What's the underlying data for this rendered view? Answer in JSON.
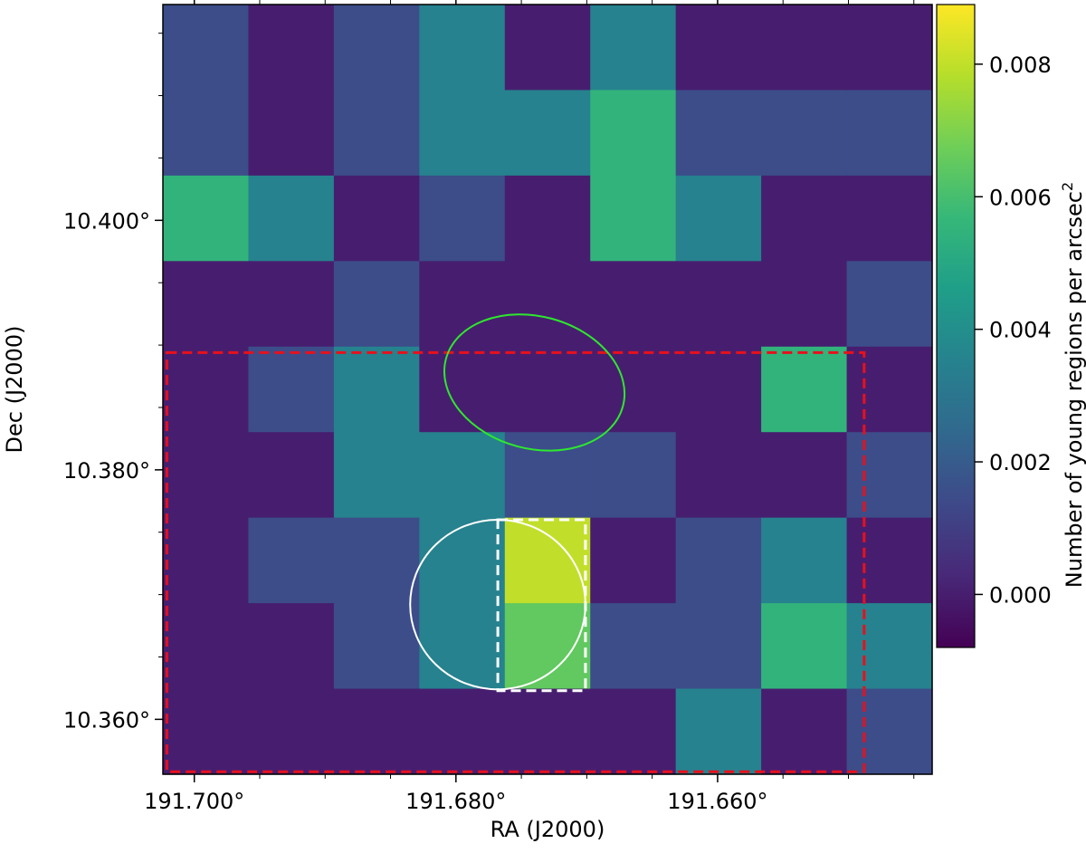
{
  "chart_data": {
    "type": "heatmap",
    "title": "",
    "xlabel": "RA (J2000)",
    "ylabel": "Dec (J2000)",
    "colorbar_label": "Number of young regions per arcsec",
    "colorbar_label_sup": "2",
    "colormap": "viridis",
    "value_range": [
      -0.0008,
      0.0089
    ],
    "ra_range": [
      191.7024,
      191.6436
    ],
    "dec_range": [
      10.3556,
      10.4173
    ],
    "x_ticks": [
      {
        "value": 191.7,
        "label": "191.700°"
      },
      {
        "value": 191.68,
        "label": "191.680°"
      },
      {
        "value": 191.66,
        "label": "191.660°"
      }
    ],
    "y_ticks": [
      {
        "value": 10.4,
        "label": "10.400°"
      },
      {
        "value": 10.38,
        "label": "10.380°"
      },
      {
        "value": 10.36,
        "label": "10.360°"
      }
    ],
    "colorbar_ticks": [
      {
        "value": 0.008,
        "label": "0.008"
      },
      {
        "value": 0.006,
        "label": "0.006"
      },
      {
        "value": 0.004,
        "label": "0.004"
      },
      {
        "value": 0.002,
        "label": "0.002"
      },
      {
        "value": 0.0,
        "label": "0.000"
      }
    ],
    "grid_rows_top_to_bottom": [
      [
        0.0015,
        0.0,
        0.0015,
        0.0035,
        0.0,
        0.0035,
        0.0,
        0.0,
        0.0
      ],
      [
        0.0015,
        0.0,
        0.0015,
        0.0035,
        0.0035,
        0.0055,
        0.0015,
        0.0015,
        0.0015
      ],
      [
        0.0055,
        0.0035,
        0.0,
        0.0015,
        0.0,
        0.0055,
        0.0035,
        0.0,
        0.0
      ],
      [
        0.0,
        0.0,
        0.0015,
        0.0,
        0.0,
        0.0,
        0.0,
        0.0,
        0.0015
      ],
      [
        0.0,
        0.0015,
        0.0035,
        0.0,
        0.0,
        0.0,
        0.0,
        0.0055,
        0.0
      ],
      [
        0.0,
        0.0,
        0.0035,
        0.0035,
        0.0015,
        0.0015,
        0.0,
        0.0,
        0.0015
      ],
      [
        0.0,
        0.0015,
        0.0015,
        0.0035,
        0.008,
        0.0,
        0.0015,
        0.0035,
        0.0
      ],
      [
        0.0,
        0.0,
        0.0015,
        0.0035,
        0.0065,
        0.0015,
        0.0015,
        0.0055,
        0.0035
      ],
      [
        0.0,
        0.0,
        0.0,
        0.0,
        0.0,
        0.0,
        0.0035,
        0.0,
        0.0015
      ]
    ],
    "overlays": [
      {
        "shape": "rectangle",
        "color": "#e8101c",
        "style": "dashed",
        "ra": [
          191.7021,
          191.6488
        ],
        "dec": [
          10.3558,
          10.3894
        ]
      },
      {
        "shape": "rectangle",
        "color": "#ffffff",
        "style": "dashed",
        "ra": [
          191.6768,
          191.6701
        ],
        "dec": [
          10.3623,
          10.376
        ]
      },
      {
        "shape": "circle",
        "color": "#ffffff",
        "style": "solid",
        "center": [
          191.6768,
          10.3692
        ],
        "radius_ra": 0.0067,
        "radius_dec": 0.0068
      },
      {
        "shape": "ellipse",
        "color": "#2ee82e",
        "style": "solid",
        "center": [
          191.674,
          10.387
        ],
        "radius_ra": 0.007,
        "radius_dec": 0.0053,
        "angle_deg": 15
      }
    ]
  }
}
